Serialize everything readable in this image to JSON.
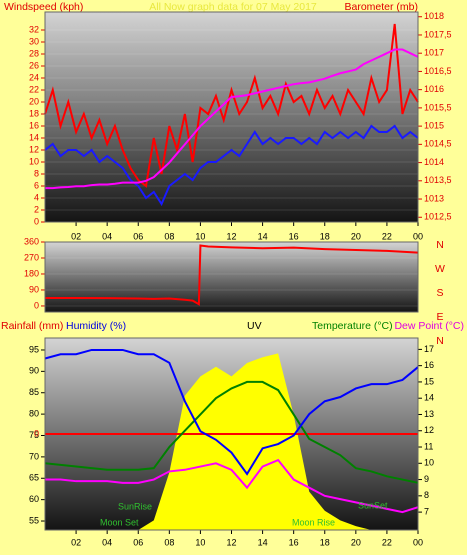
{
  "chart_data": [
    {
      "type": "line",
      "title": "All Now graph data for 07 May 2017",
      "y_label": "Windspeed (kph)",
      "y2_label": "Barometer (mb)",
      "xlim": [
        0,
        24
      ],
      "xticks": [
        {
          "value": 2,
          "label": "02"
        },
        {
          "value": 4,
          "label": "04"
        },
        {
          "value": 6,
          "label": "06"
        },
        {
          "value": 8,
          "label": "08"
        },
        10,
        12,
        14,
        16,
        18,
        20,
        22,
        {
          "value": 24,
          "label": "00"
        }
      ],
      "ylim": [
        0,
        35
      ],
      "yticks": [
        0,
        2,
        4,
        6,
        8,
        10,
        12,
        14,
        16,
        18,
        20,
        22,
        24,
        26,
        28,
        30,
        32
      ],
      "y2lim": [
        1012.37,
        1018.13
      ],
      "y2ticks": [
        {
          "value": 1012.5,
          "label": "1012,5"
        },
        1013,
        {
          "value": 1013.5,
          "label": "1013,5"
        },
        1014,
        {
          "value": 1014.5,
          "label": "1014,5"
        },
        1015,
        {
          "value": 1015.5,
          "label": "1015,5"
        },
        1016,
        {
          "value": 1016.5,
          "label": "1016,5"
        },
        1017,
        {
          "value": 1017.5,
          "label": "1017,5"
        },
        1018
      ],
      "grid": true,
      "x": [
        0,
        0.5,
        1,
        1.5,
        2,
        2.5,
        3,
        3.5,
        4,
        4.5,
        5,
        5.5,
        6,
        6.5,
        7,
        7.5,
        8,
        8.5,
        9,
        9.5,
        10,
        10.5,
        11,
        11.5,
        12,
        12.5,
        13,
        13.5,
        14,
        14.5,
        15,
        15.5,
        16,
        16.5,
        17,
        17.5,
        18,
        18.5,
        19,
        19.5,
        20,
        20.5,
        21,
        21.5,
        22,
        22.5,
        23,
        23.5,
        24
      ],
      "series": [
        {
          "color": "#ff0000",
          "values": [
            18,
            22,
            16,
            20,
            15,
            18,
            14,
            17,
            13,
            16,
            12,
            9,
            7,
            6,
            14,
            8,
            16,
            12,
            18,
            10,
            19,
            18,
            21,
            17,
            22,
            18,
            20,
            24,
            19,
            21,
            18,
            23,
            20,
            21,
            18,
            22,
            19,
            21,
            18,
            22,
            20,
            18,
            24,
            20,
            22,
            33,
            18,
            22,
            20
          ]
        },
        {
          "color": "#1a1aff",
          "values": [
            12,
            13,
            11,
            12,
            12,
            11,
            12,
            10,
            11,
            10,
            9,
            7,
            6,
            4,
            5,
            3,
            6,
            7,
            8,
            7,
            9,
            10,
            10,
            11,
            12,
            11,
            13,
            15,
            13,
            14,
            13,
            14,
            14,
            13,
            14,
            13,
            15,
            14,
            15,
            14,
            15,
            14,
            16,
            15,
            15,
            16,
            14,
            15,
            14
          ]
        },
        {
          "color": "#ff00ff",
          "axis": "y2",
          "values": [
            1013.3,
            1013.3,
            1013.32,
            1013.33,
            1013.35,
            1013.35,
            1013.38,
            1013.4,
            1013.4,
            1013.42,
            1013.45,
            1013.45,
            1013.45,
            1013.5,
            1013.6,
            1013.8,
            1014.0,
            1014.25,
            1014.5,
            1014.75,
            1015.0,
            1015.2,
            1015.4,
            1015.6,
            1015.8,
            1015.82,
            1015.85,
            1015.9,
            1015.95,
            1016.0,
            1016.05,
            1016.1,
            1016.15,
            1016.18,
            1016.2,
            1016.25,
            1016.3,
            1016.38,
            1016.45,
            1016.5,
            1016.55,
            1016.7,
            1016.8,
            1016.9,
            1017.0,
            1017.1,
            1017.1,
            1017.0,
            1016.9
          ]
        }
      ]
    },
    {
      "type": "line",
      "compass_labels": [
        "N",
        "W",
        "S",
        "E",
        "N"
      ],
      "xlim": [
        0,
        24
      ],
      "ylim": [
        -34,
        360
      ],
      "yticks": [
        0,
        90,
        180,
        270,
        360
      ],
      "grid": true,
      "x": [
        0,
        2,
        4,
        6,
        7,
        8,
        9,
        9.5,
        9.9,
        10,
        10.5,
        12,
        14,
        16,
        18,
        20,
        22,
        24
      ],
      "series": [
        {
          "color": "#ff0000",
          "values": [
            45,
            45,
            44,
            42,
            40,
            42,
            35,
            30,
            10,
            340,
            335,
            330,
            325,
            328,
            320,
            315,
            310,
            300
          ]
        }
      ]
    },
    {
      "type": "line",
      "labels": [
        "Rainfall (mm)",
        "Humidity (%)",
        "UV",
        "Temperature (°C)",
        "Dew Point (°C)"
      ],
      "annotations": [
        "SunRise",
        "SunSet",
        "Moon Set",
        "Moon Rise"
      ],
      "xlim": [
        0,
        24
      ],
      "xticks": [
        {
          "value": 2,
          "label": "02"
        },
        {
          "value": 4,
          "label": "04"
        },
        {
          "value": 6,
          "label": "06"
        },
        {
          "value": 8,
          "label": "08"
        },
        10,
        12,
        14,
        16,
        18,
        20,
        22,
        {
          "value": 24,
          "label": "00"
        }
      ],
      "ylim": [
        52.9,
        97.8
      ],
      "yticks": [
        55,
        60,
        65,
        70,
        75,
        80,
        85,
        90,
        95
      ],
      "y2lim": [
        5.9,
        17.7
      ],
      "y2ticks": [
        7,
        8,
        9,
        10,
        11,
        12,
        13,
        14,
        15,
        16,
        17
      ],
      "y3lim": [
        0,
        10
      ],
      "y4lim": [
        -1,
        1
      ],
      "y4ticks": [
        0
      ],
      "x": [
        0,
        1,
        2,
        3,
        4,
        5,
        6,
        7,
        8,
        9,
        10,
        11,
        12,
        13,
        14,
        15,
        16,
        17,
        18,
        19,
        20,
        21,
        22,
        23,
        24
      ],
      "series": [
        {
          "color": "#ffff00",
          "axis": "y3",
          "area": true,
          "values": [
            0,
            0,
            0,
            0,
            0,
            0,
            0,
            0.5,
            3,
            7,
            8,
            8.5,
            8,
            8.7,
            9,
            9.2,
            6,
            2,
            1,
            0.5,
            0.2,
            0,
            0,
            0,
            0
          ]
        },
        {
          "color": "#ff0000",
          "axis": "y4",
          "values": [
            0,
            0,
            0,
            0,
            0,
            0,
            0,
            0,
            0,
            0,
            0,
            0,
            0,
            0,
            0,
            0,
            0,
            0,
            0,
            0,
            0,
            0,
            0,
            0,
            0
          ]
        },
        {
          "color": "#008000",
          "axis": "y2",
          "values": [
            10.0,
            9.9,
            9.8,
            9.7,
            9.6,
            9.6,
            9.6,
            9.7,
            11,
            12,
            13,
            14,
            14.6,
            15,
            15,
            14.5,
            13,
            11.5,
            11,
            10.5,
            9.7,
            9.5,
            9.2,
            9.0,
            8.8
          ]
        },
        {
          "color": "#ff00ff",
          "axis": "y2",
          "values": [
            9.0,
            9.0,
            8.9,
            8.9,
            8.9,
            8.8,
            8.8,
            9.0,
            9.5,
            9.6,
            9.8,
            10.0,
            9.6,
            8.5,
            9.8,
            10.2,
            9.0,
            8.5,
            8.0,
            7.8,
            7.6,
            7.4,
            7.2,
            7.0,
            7.3
          ]
        },
        {
          "color": "#0000ff",
          "values": [
            93,
            94,
            94,
            95,
            95,
            95,
            94,
            94,
            92,
            83,
            76,
            74,
            71,
            66,
            72,
            73,
            75,
            80,
            83,
            84,
            86,
            87,
            87,
            88,
            91
          ]
        }
      ]
    }
  ]
}
